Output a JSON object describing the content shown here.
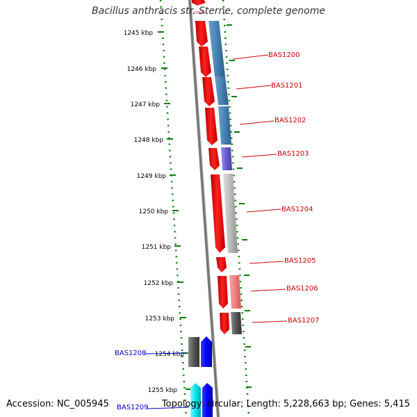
{
  "title": "Bacillus anthracis str. Sterne, complete genome",
  "accession": "Accession: NC_005945",
  "topology": "Topology: circular; Length: 5,228,663 bp; Genes: 5,415",
  "colors": {
    "axis_line": "#777777",
    "ruler": "#008000",
    "label_red": "#cc0000",
    "label_blue": "#0000cc",
    "red_arrow": "#ff0000",
    "steel_blue": "#4682b4",
    "purple": "#7b68ee",
    "silver": "#bbbbbb",
    "light_red": "#f08080",
    "dark_gray": "#555555",
    "blue": "#0000ff",
    "cyan": "#00e5ee"
  },
  "kbp_ticks": [
    "1245 kbp",
    "1246 kbp",
    "1247 kbp",
    "1248 kbp",
    "1249 kbp",
    "1250 kbp",
    "1251 kbp",
    "1252 kbp",
    "1253 kbp",
    "1254 kbp",
    "1255 kbp"
  ],
  "gene_labels_red": [
    "BAS1200",
    "BAS1201",
    "BAS1202",
    "BAS1203",
    "BAS1204",
    "BAS1205",
    "BAS1206",
    "BAS1207"
  ],
  "gene_labels_blue": [
    "BAS1208",
    "BAS1209"
  ]
}
